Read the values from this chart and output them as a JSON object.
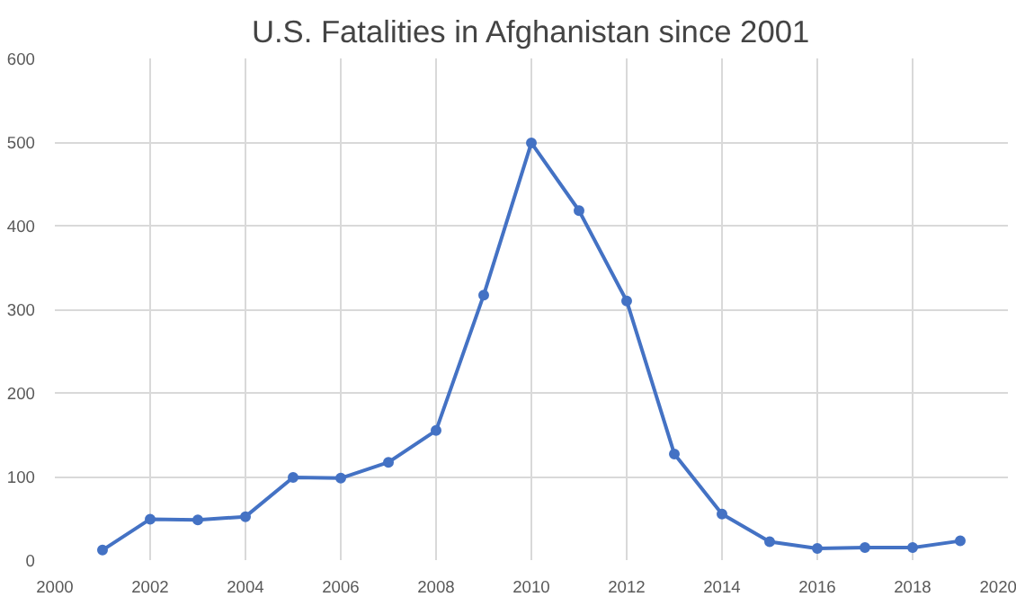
{
  "chart_data": {
    "type": "line",
    "title": "U.S. Fatalities in Afghanistan since 2001",
    "x": [
      2001,
      2002,
      2003,
      2004,
      2005,
      2006,
      2007,
      2008,
      2009,
      2010,
      2011,
      2012,
      2013,
      2014,
      2015,
      2016,
      2017,
      2018,
      2019
    ],
    "series": [
      {
        "color": "#4472c4",
        "values": [
          12,
          49,
          48,
          52,
          99,
          98,
          117,
          155,
          317,
          499,
          418,
          310,
          127,
          55,
          22,
          14,
          15,
          15,
          23
        ]
      }
    ],
    "xlim": [
      2000,
      2020
    ],
    "xticks": [
      2000,
      2002,
      2004,
      2006,
      2008,
      2010,
      2012,
      2014,
      2016,
      2018,
      2020
    ],
    "ylim": [
      0,
      600
    ],
    "yticks": [
      0,
      100,
      200,
      300,
      400,
      500,
      600
    ],
    "grid": true,
    "marker": "circle",
    "line_style": "solid"
  }
}
